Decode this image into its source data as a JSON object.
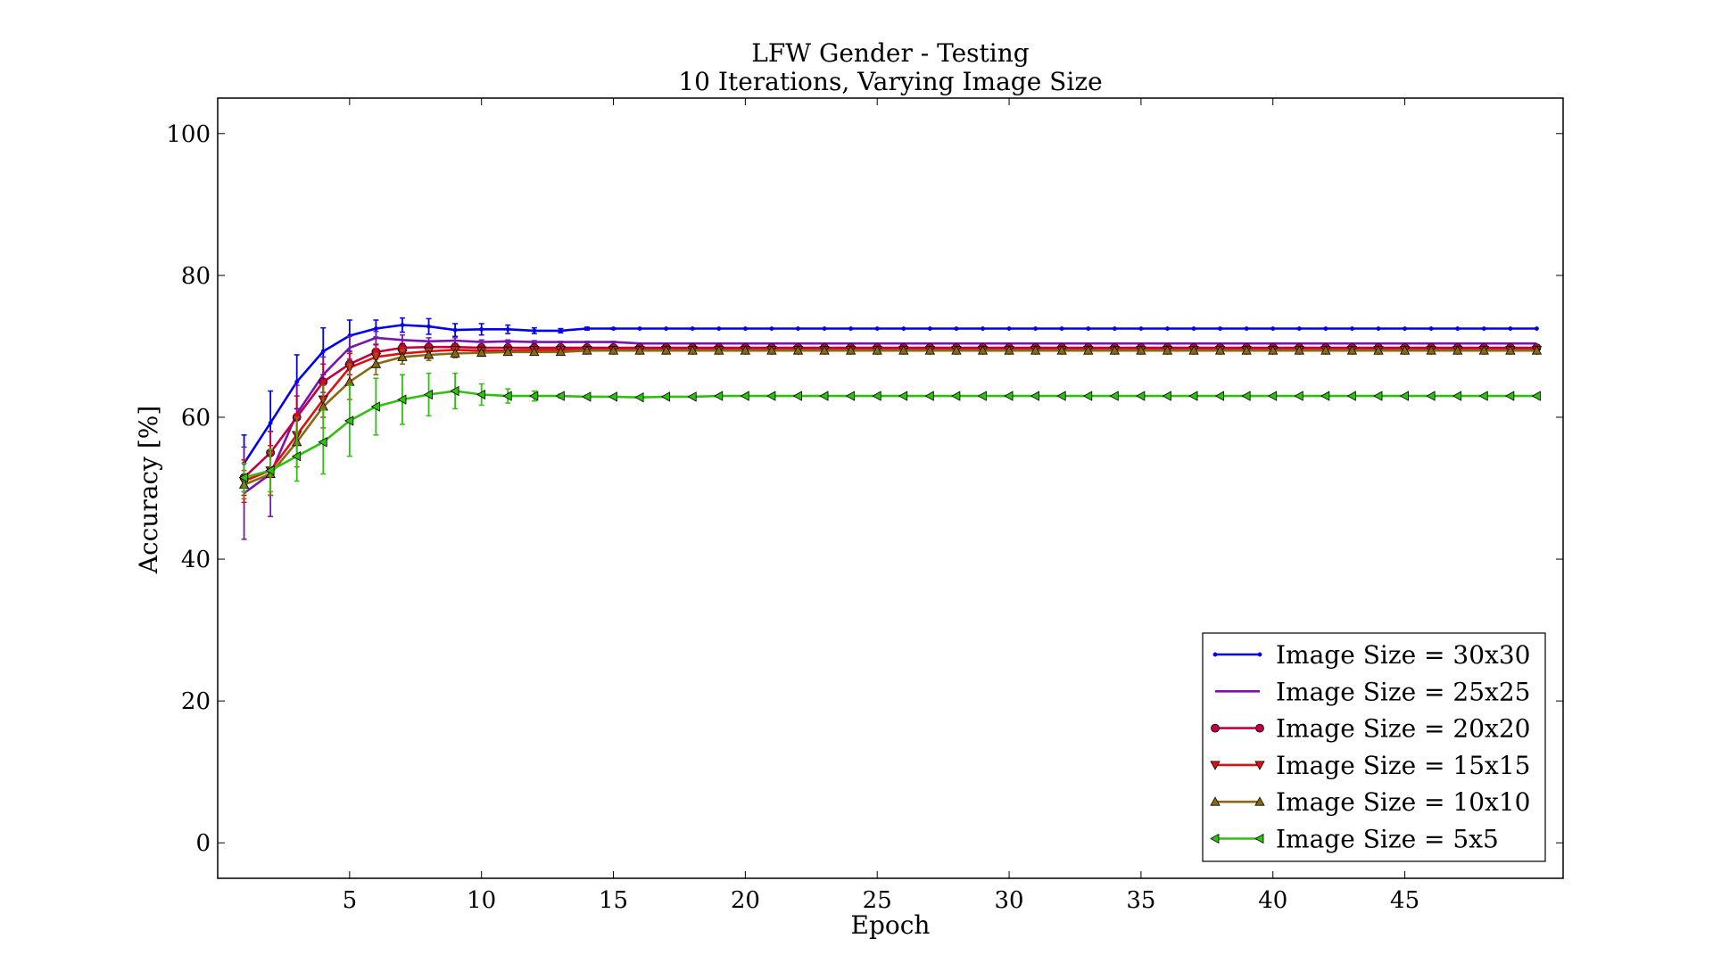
{
  "chart_data": {
    "type": "line",
    "title": "LFW Gender - Testing",
    "subtitle": "10 Iterations, Varying Image Size",
    "xlabel": "Epoch",
    "ylabel": "Accuracy [%]",
    "xlim": [
      0,
      51
    ],
    "ylim": [
      -5,
      105
    ],
    "xticks": [
      5,
      10,
      15,
      20,
      25,
      30,
      35,
      40,
      45
    ],
    "yticks": [
      0,
      20,
      40,
      60,
      80,
      100
    ],
    "grid": false,
    "legend_position": "lower-right",
    "x": [
      1,
      2,
      3,
      4,
      5,
      6,
      7,
      8,
      9,
      10,
      11,
      12,
      13,
      14,
      15,
      16,
      17,
      18,
      19,
      20,
      21,
      22,
      23,
      24,
      25,
      26,
      27,
      28,
      29,
      30,
      31,
      32,
      33,
      34,
      35,
      36,
      37,
      38,
      39,
      40,
      41,
      42,
      43,
      44,
      45,
      46,
      47,
      48,
      49,
      50
    ],
    "series": [
      {
        "name": "Image Size = 30x30",
        "color": "#0000ee",
        "marker": "point",
        "values": [
          53.5,
          59.2,
          65.0,
          69.3,
          71.5,
          72.5,
          73.0,
          72.8,
          72.3,
          72.4,
          72.4,
          72.2,
          72.2,
          72.5,
          72.5,
          72.5,
          72.5,
          72.5,
          72.5,
          72.5,
          72.5,
          72.5,
          72.5,
          72.5,
          72.5,
          72.5,
          72.5,
          72.5,
          72.5,
          72.5,
          72.5,
          72.5,
          72.5,
          72.5,
          72.5,
          72.5,
          72.5,
          72.5,
          72.5,
          72.5,
          72.5,
          72.5,
          72.5,
          72.5,
          72.5,
          72.5,
          72.5,
          72.5,
          72.5,
          72.5
        ],
        "errors": [
          4.0,
          4.5,
          3.8,
          3.3,
          2.2,
          1.2,
          1.0,
          1.1,
          0.9,
          0.8,
          0.6,
          0.4,
          0.3,
          0.2,
          0.1,
          0,
          0,
          0,
          0,
          0,
          0,
          0,
          0,
          0,
          0,
          0,
          0,
          0,
          0,
          0,
          0,
          0,
          0,
          0,
          0,
          0,
          0,
          0,
          0,
          0,
          0,
          0,
          0,
          0,
          0,
          0,
          0,
          0,
          0,
          0
        ]
      },
      {
        "name": "Image Size = 25x25",
        "color": "#7a14b0",
        "marker": "none",
        "values": [
          49.3,
          52.0,
          60.5,
          66.0,
          69.8,
          71.2,
          70.9,
          70.7,
          70.8,
          70.6,
          70.7,
          70.6,
          70.6,
          70.6,
          70.6,
          70.4,
          70.4,
          70.4,
          70.4,
          70.4,
          70.4,
          70.4,
          70.4,
          70.4,
          70.4,
          70.4,
          70.4,
          70.4,
          70.4,
          70.4,
          70.4,
          70.4,
          70.4,
          70.4,
          70.4,
          70.4,
          70.4,
          70.4,
          70.4,
          70.4,
          70.4,
          70.4,
          70.4,
          70.4,
          70.4,
          70.4,
          70.4,
          70.4,
          70.4,
          70.4
        ],
        "errors": [
          6.5,
          6.0,
          4.0,
          2.5,
          1.6,
          0.9,
          0.7,
          0.5,
          0.4,
          0.3,
          0.2,
          0.2,
          0.1,
          0.1,
          0.1,
          0,
          0,
          0,
          0,
          0,
          0,
          0,
          0,
          0,
          0,
          0,
          0,
          0,
          0,
          0,
          0,
          0,
          0,
          0,
          0,
          0,
          0,
          0,
          0,
          0,
          0,
          0,
          0,
          0,
          0,
          0,
          0,
          0,
          0,
          0
        ]
      },
      {
        "name": "Image Size = 20x20",
        "color": "#c00040",
        "marker": "circle",
        "values": [
          51.5,
          55.0,
          60.0,
          65.0,
          67.5,
          69.2,
          69.8,
          69.9,
          69.9,
          69.8,
          69.8,
          69.8,
          69.8,
          69.8,
          69.8,
          69.8,
          69.8,
          69.8,
          69.8,
          69.8,
          69.8,
          69.8,
          69.8,
          69.8,
          69.8,
          69.8,
          69.8,
          69.8,
          69.8,
          69.8,
          69.8,
          69.8,
          69.8,
          69.8,
          69.8,
          69.8,
          69.8,
          69.8,
          69.8,
          69.8,
          69.8,
          69.8,
          69.8,
          69.8,
          69.8,
          69.8,
          69.8,
          69.8,
          69.8,
          69.8
        ],
        "errors": [
          2.5,
          3.0,
          3.0,
          2.5,
          1.5,
          1.0,
          0.6,
          0.4,
          0.3,
          0.2,
          0.2,
          0.1,
          0.1,
          0,
          0,
          0,
          0,
          0,
          0,
          0,
          0,
          0,
          0,
          0,
          0,
          0,
          0,
          0,
          0,
          0,
          0,
          0,
          0,
          0,
          0,
          0,
          0,
          0,
          0,
          0,
          0,
          0,
          0,
          0,
          0,
          0,
          0,
          0,
          0,
          0
        ]
      },
      {
        "name": "Image Size = 15x15",
        "color": "#e01010",
        "marker": "triangle-down",
        "values": [
          51.0,
          52.5,
          57.5,
          62.5,
          67.0,
          68.5,
          69.0,
          69.3,
          69.5,
          69.4,
          69.4,
          69.5,
          69.5,
          69.5,
          69.5,
          69.5,
          69.5,
          69.5,
          69.5,
          69.5,
          69.5,
          69.5,
          69.5,
          69.5,
          69.5,
          69.5,
          69.5,
          69.5,
          69.5,
          69.5,
          69.5,
          69.5,
          69.5,
          69.5,
          69.5,
          69.5,
          69.5,
          69.5,
          69.5,
          69.5,
          69.5,
          69.5,
          69.5,
          69.5,
          69.5,
          69.5,
          69.5,
          69.5,
          69.5,
          69.5
        ],
        "errors": [
          3.0,
          3.5,
          3.0,
          2.5,
          2.0,
          1.2,
          0.9,
          0.6,
          0.5,
          0.4,
          0.3,
          0.2,
          0.1,
          0.1,
          0,
          0,
          0,
          0,
          0,
          0,
          0,
          0,
          0,
          0,
          0,
          0,
          0,
          0,
          0,
          0,
          0,
          0,
          0,
          0,
          0,
          0,
          0,
          0,
          0,
          0,
          0,
          0,
          0,
          0,
          0,
          0,
          0,
          0,
          0,
          0
        ]
      },
      {
        "name": "Image Size = 10x10",
        "color": "#8a6a10",
        "marker": "triangle-up",
        "values": [
          50.5,
          52.0,
          56.5,
          61.5,
          65.0,
          67.5,
          68.5,
          68.8,
          69.0,
          69.1,
          69.2,
          69.2,
          69.2,
          69.4,
          69.4,
          69.4,
          69.4,
          69.4,
          69.4,
          69.4,
          69.4,
          69.4,
          69.4,
          69.4,
          69.4,
          69.4,
          69.4,
          69.4,
          69.4,
          69.4,
          69.4,
          69.4,
          69.4,
          69.4,
          69.4,
          69.4,
          69.4,
          69.4,
          69.4,
          69.4,
          69.4,
          69.4,
          69.4,
          69.4,
          69.4,
          69.4,
          69.4,
          69.4,
          69.4,
          69.4
        ],
        "errors": [
          2.0,
          3.0,
          3.5,
          3.0,
          2.5,
          1.5,
          1.0,
          0.8,
          0.6,
          0.5,
          0.4,
          0.3,
          0.2,
          0.1,
          0,
          0,
          0,
          0,
          0,
          0,
          0,
          0,
          0,
          0,
          0,
          0,
          0,
          0,
          0,
          0,
          0,
          0,
          0,
          0,
          0,
          0,
          0,
          0,
          0,
          0,
          0,
          0,
          0,
          0,
          0,
          0,
          0,
          0,
          0,
          0
        ]
      },
      {
        "name": "Image Size = 5x5",
        "color": "#30c010",
        "marker": "triangle-left",
        "values": [
          51.5,
          52.5,
          54.5,
          56.5,
          59.5,
          61.5,
          62.5,
          63.2,
          63.7,
          63.2,
          63.0,
          63.0,
          63.0,
          62.9,
          62.9,
          62.8,
          62.9,
          62.9,
          63.0,
          63.0,
          63.0,
          63.0,
          63.0,
          63.0,
          63.0,
          63.0,
          63.0,
          63.0,
          63.0,
          63.0,
          63.0,
          63.0,
          63.0,
          63.0,
          63.0,
          63.0,
          63.0,
          63.0,
          63.0,
          63.0,
          63.0,
          63.0,
          63.0,
          63.0,
          63.0,
          63.0,
          63.0,
          63.0,
          63.0,
          63.0
        ],
        "errors": [
          2.0,
          3.0,
          3.5,
          4.5,
          5.0,
          4.0,
          3.5,
          3.0,
          2.5,
          1.5,
          1.0,
          0.7,
          0.3,
          0.2,
          0.1,
          0.1,
          0,
          0,
          0,
          0,
          0,
          0,
          0,
          0,
          0,
          0,
          0,
          0,
          0,
          0,
          0,
          0,
          0,
          0,
          0,
          0,
          0,
          0,
          0,
          0,
          0,
          0,
          0,
          0,
          0,
          0,
          0,
          0,
          0,
          0
        ]
      }
    ]
  }
}
